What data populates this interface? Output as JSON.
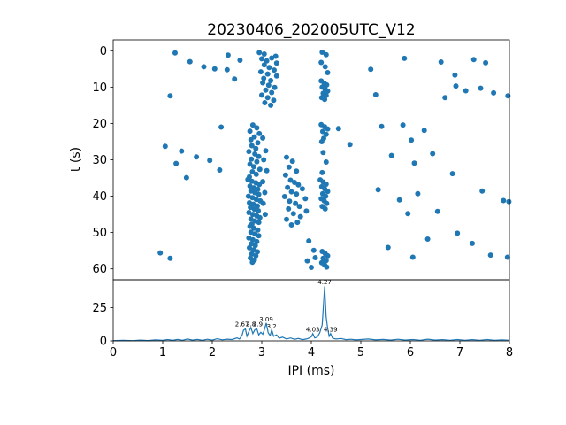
{
  "figure": {
    "title": "20230406_202005UTC_V12",
    "background": "#ffffff",
    "accent_color": "#1f77b4"
  },
  "chart_data": [
    {
      "type": "scatter",
      "title": "20230406_202005UTC_V12",
      "xlabel": "",
      "ylabel": "t (s)",
      "xlim": [
        0,
        8
      ],
      "ylim": [
        63,
        -3
      ],
      "yticks": [
        0,
        10,
        20,
        30,
        40,
        50,
        60
      ],
      "xticks": [
        0,
        1,
        2,
        3,
        4,
        5,
        6,
        7,
        8
      ],
      "show_xticklabels": false,
      "grid": false,
      "marker_color": "#1f77b4",
      "points": [
        [
          1.25,
          0.6
        ],
        [
          2.32,
          1.2
        ],
        [
          2.95,
          0.5
        ],
        [
          3.05,
          0.9
        ],
        [
          3.28,
          1.5
        ],
        [
          4.22,
          0.4
        ],
        [
          4.3,
          1.1
        ],
        [
          5.88,
          2.1
        ],
        [
          1.55,
          3.0
        ],
        [
          1.83,
          4.4
        ],
        [
          2.3,
          5.2
        ],
        [
          2.56,
          2.6
        ],
        [
          2.05,
          5.0
        ],
        [
          2.45,
          7.8
        ],
        [
          3.0,
          2.2
        ],
        [
          3.1,
          2.8
        ],
        [
          3.2,
          2.0
        ],
        [
          3.3,
          3.4
        ],
        [
          3.05,
          3.9
        ],
        [
          3.15,
          4.6
        ],
        [
          3.25,
          5.3
        ],
        [
          2.98,
          5.8
        ],
        [
          3.12,
          6.4
        ],
        [
          3.3,
          6.9
        ],
        [
          3.04,
          7.6
        ],
        [
          3.18,
          8.2
        ],
        [
          4.2,
          3.2
        ],
        [
          4.28,
          4.4
        ],
        [
          4.33,
          6.0
        ],
        [
          6.62,
          3.1
        ],
        [
          7.28,
          2.4
        ],
        [
          7.52,
          3.3
        ],
        [
          5.2,
          5.1
        ],
        [
          6.9,
          6.7
        ],
        [
          3.02,
          8.8
        ],
        [
          3.14,
          9.5
        ],
        [
          3.26,
          10.1
        ],
        [
          3.08,
          10.8
        ],
        [
          3.2,
          11.5
        ],
        [
          3.0,
          12.2
        ],
        [
          3.12,
          12.9
        ],
        [
          3.24,
          13.6
        ],
        [
          3.06,
          14.3
        ],
        [
          3.18,
          15.0
        ],
        [
          4.2,
          8.3
        ],
        [
          4.26,
          8.9
        ],
        [
          4.31,
          9.4
        ],
        [
          4.22,
          10.0
        ],
        [
          4.28,
          10.6
        ],
        [
          4.33,
          11.1
        ],
        [
          4.24,
          11.7
        ],
        [
          4.3,
          12.3
        ],
        [
          4.21,
          12.9
        ],
        [
          4.27,
          13.4
        ],
        [
          6.92,
          9.7
        ],
        [
          7.12,
          11.0
        ],
        [
          7.42,
          10.3
        ],
        [
          7.68,
          11.6
        ],
        [
          7.97,
          12.4
        ],
        [
          6.7,
          12.9
        ],
        [
          1.15,
          12.4
        ],
        [
          5.3,
          12.1
        ],
        [
          2.18,
          21.0
        ],
        [
          2.82,
          20.4
        ],
        [
          2.9,
          21.2
        ],
        [
          2.76,
          22.1
        ],
        [
          2.95,
          22.8
        ],
        [
          2.85,
          23.7
        ],
        [
          2.78,
          24.5
        ],
        [
          2.92,
          25.3
        ],
        [
          2.8,
          26.1
        ],
        [
          2.88,
          26.9
        ],
        [
          3.02,
          24.0
        ],
        [
          3.08,
          27.5
        ],
        [
          4.2,
          20.3
        ],
        [
          4.27,
          20.9
        ],
        [
          4.33,
          21.5
        ],
        [
          4.23,
          22.2
        ],
        [
          4.3,
          23.0
        ],
        [
          4.25,
          24.1
        ],
        [
          4.21,
          25.0
        ],
        [
          5.42,
          20.8
        ],
        [
          5.85,
          20.4
        ],
        [
          6.28,
          21.9
        ],
        [
          4.55,
          21.4
        ],
        [
          4.78,
          25.8
        ],
        [
          6.02,
          24.6
        ],
        [
          2.74,
          27.7
        ],
        [
          2.86,
          28.4
        ],
        [
          2.94,
          29.1
        ],
        [
          2.79,
          29.8
        ],
        [
          2.9,
          30.5
        ],
        [
          2.76,
          31.2
        ],
        [
          2.84,
          31.9
        ],
        [
          2.96,
          32.6
        ],
        [
          2.81,
          33.3
        ],
        [
          2.89,
          34.0
        ],
        [
          2.75,
          34.7
        ],
        [
          3.04,
          30.0
        ],
        [
          3.1,
          33.0
        ],
        [
          1.05,
          26.3
        ],
        [
          1.38,
          27.6
        ],
        [
          1.68,
          29.2
        ],
        [
          1.27,
          31.0
        ],
        [
          1.95,
          30.2
        ],
        [
          2.15,
          32.8
        ],
        [
          1.48,
          34.9
        ],
        [
          3.5,
          29.3
        ],
        [
          3.62,
          30.4
        ],
        [
          3.55,
          32.0
        ],
        [
          3.7,
          33.1
        ],
        [
          3.48,
          34.2
        ],
        [
          4.24,
          28.0
        ],
        [
          4.3,
          30.6
        ],
        [
          4.22,
          33.5
        ],
        [
          5.62,
          28.8
        ],
        [
          6.08,
          30.9
        ],
        [
          6.45,
          28.3
        ],
        [
          6.85,
          33.8
        ],
        [
          2.72,
          35.4
        ],
        [
          2.8,
          35.9
        ],
        [
          2.88,
          36.3
        ],
        [
          2.95,
          36.8
        ],
        [
          2.76,
          37.2
        ],
        [
          2.84,
          37.7
        ],
        [
          2.92,
          38.1
        ],
        [
          2.78,
          38.6
        ],
        [
          2.86,
          39.0
        ],
        [
          2.94,
          39.5
        ],
        [
          2.73,
          40.0
        ],
        [
          2.81,
          40.4
        ],
        [
          2.89,
          40.9
        ],
        [
          2.97,
          41.3
        ],
        [
          2.75,
          41.8
        ],
        [
          2.83,
          42.2
        ],
        [
          2.91,
          42.7
        ],
        [
          2.77,
          43.1
        ],
        [
          2.85,
          43.6
        ],
        [
          2.93,
          44.0
        ],
        [
          2.74,
          44.5
        ],
        [
          2.82,
          45.0
        ],
        [
          2.9,
          45.4
        ],
        [
          2.96,
          45.9
        ],
        [
          2.78,
          46.3
        ],
        [
          2.86,
          46.8
        ],
        [
          2.94,
          47.2
        ],
        [
          2.8,
          47.7
        ],
        [
          3.02,
          36.0
        ],
        [
          3.06,
          39.0
        ],
        [
          3.03,
          42.0
        ],
        [
          3.07,
          45.0
        ],
        [
          3.58,
          35.6
        ],
        [
          3.66,
          36.2
        ],
        [
          3.74,
          36.9
        ],
        [
          3.52,
          37.6
        ],
        [
          3.82,
          38.0
        ],
        [
          3.6,
          38.8
        ],
        [
          3.7,
          39.4
        ],
        [
          3.46,
          40.1
        ],
        [
          3.88,
          40.7
        ],
        [
          3.56,
          41.4
        ],
        [
          3.68,
          42.0
        ],
        [
          3.76,
          42.8
        ],
        [
          3.54,
          43.5
        ],
        [
          3.9,
          44.1
        ],
        [
          3.64,
          44.8
        ],
        [
          3.78,
          45.6
        ],
        [
          3.5,
          46.4
        ],
        [
          3.72,
          47.2
        ],
        [
          3.6,
          47.9
        ],
        [
          4.18,
          35.5
        ],
        [
          4.24,
          36.1
        ],
        [
          4.3,
          36.7
        ],
        [
          4.21,
          37.4
        ],
        [
          4.27,
          38.0
        ],
        [
          4.33,
          38.7
        ],
        [
          4.23,
          39.3
        ],
        [
          4.29,
          40.0
        ],
        [
          4.2,
          40.7
        ],
        [
          4.26,
          41.3
        ],
        [
          4.31,
          42.0
        ],
        [
          4.22,
          42.8
        ],
        [
          4.28,
          43.5
        ],
        [
          5.35,
          38.2
        ],
        [
          5.78,
          41.0
        ],
        [
          6.15,
          39.3
        ],
        [
          7.45,
          38.6
        ],
        [
          7.88,
          41.2
        ],
        [
          7.99,
          41.5
        ],
        [
          5.95,
          44.8
        ],
        [
          6.55,
          44.2
        ],
        [
          2.76,
          48.3
        ],
        [
          2.84,
          48.8
        ],
        [
          2.92,
          49.3
        ],
        [
          2.78,
          49.9
        ],
        [
          2.86,
          50.4
        ],
        [
          2.94,
          50.9
        ],
        [
          2.74,
          51.5
        ],
        [
          2.82,
          52.0
        ],
        [
          2.9,
          52.5
        ],
        [
          2.79,
          53.1
        ],
        [
          2.87,
          53.6
        ],
        [
          2.75,
          54.2
        ],
        [
          2.83,
          54.8
        ],
        [
          2.91,
          55.3
        ],
        [
          2.8,
          55.9
        ],
        [
          2.88,
          56.4
        ],
        [
          2.77,
          57.0
        ],
        [
          2.85,
          57.6
        ],
        [
          2.81,
          58.2
        ],
        [
          3.95,
          52.3
        ],
        [
          4.05,
          54.9
        ],
        [
          3.92,
          57.8
        ],
        [
          4.08,
          56.9
        ],
        [
          4.0,
          59.6
        ],
        [
          4.22,
          55.2
        ],
        [
          4.28,
          55.8
        ],
        [
          4.33,
          56.4
        ],
        [
          4.24,
          57.1
        ],
        [
          4.3,
          57.7
        ],
        [
          4.21,
          58.3
        ],
        [
          4.27,
          58.9
        ],
        [
          4.31,
          59.5
        ],
        [
          0.95,
          55.6
        ],
        [
          1.15,
          57.1
        ],
        [
          6.35,
          51.8
        ],
        [
          6.95,
          50.2
        ],
        [
          7.25,
          53.0
        ],
        [
          7.62,
          56.2
        ],
        [
          6.05,
          56.8
        ],
        [
          5.55,
          54.1
        ],
        [
          7.96,
          56.8
        ]
      ]
    },
    {
      "type": "line",
      "xlabel": "IPI (ms)",
      "ylabel": "",
      "xlim": [
        0,
        8
      ],
      "ylim": [
        0,
        46
      ],
      "yticks": [
        0,
        25
      ],
      "xticks": [
        0,
        1,
        2,
        3,
        4,
        5,
        6,
        7,
        8
      ],
      "show_xticklabels": true,
      "grid": false,
      "line_color": "#1f77b4",
      "points": [
        [
          0,
          0.2
        ],
        [
          0.2,
          0.4
        ],
        [
          0.4,
          0.2
        ],
        [
          0.55,
          0.6
        ],
        [
          0.7,
          0.3
        ],
        [
          0.85,
          0.7
        ],
        [
          1.0,
          0.4
        ],
        [
          1.1,
          1.0
        ],
        [
          1.2,
          0.4
        ],
        [
          1.3,
          1.1
        ],
        [
          1.4,
          0.5
        ],
        [
          1.5,
          1.4
        ],
        [
          1.6,
          0.6
        ],
        [
          1.7,
          1.1
        ],
        [
          1.8,
          0.5
        ],
        [
          1.9,
          1.2
        ],
        [
          2.0,
          0.6
        ],
        [
          2.1,
          1.6
        ],
        [
          2.2,
          0.8
        ],
        [
          2.3,
          1.3
        ],
        [
          2.4,
          1.0
        ],
        [
          2.5,
          2.2
        ],
        [
          2.55,
          1.4
        ],
        [
          2.6,
          4.0
        ],
        [
          2.63,
          8.0
        ],
        [
          2.67,
          9.0
        ],
        [
          2.7,
          3.5
        ],
        [
          2.74,
          7.0
        ],
        [
          2.78,
          10.0
        ],
        [
          2.82,
          5.5
        ],
        [
          2.86,
          8.5
        ],
        [
          2.9,
          9.0
        ],
        [
          2.94,
          4.5
        ],
        [
          2.98,
          6.5
        ],
        [
          3.02,
          5.0
        ],
        [
          3.05,
          8.0
        ],
        [
          3.09,
          13.5
        ],
        [
          3.13,
          6.0
        ],
        [
          3.17,
          4.0
        ],
        [
          3.2,
          8.5
        ],
        [
          3.24,
          3.5
        ],
        [
          3.3,
          4.5
        ],
        [
          3.35,
          2.0
        ],
        [
          3.42,
          2.8
        ],
        [
          3.5,
          1.4
        ],
        [
          3.58,
          2.2
        ],
        [
          3.66,
          1.2
        ],
        [
          3.74,
          1.8
        ],
        [
          3.82,
          0.9
        ],
        [
          3.9,
          1.4
        ],
        [
          3.96,
          2.2
        ],
        [
          4.0,
          3.0
        ],
        [
          4.03,
          5.5
        ],
        [
          4.07,
          2.2
        ],
        [
          4.12,
          2.8
        ],
        [
          4.17,
          6.0
        ],
        [
          4.22,
          12.0
        ],
        [
          4.27,
          41.0
        ],
        [
          4.3,
          18.0
        ],
        [
          4.33,
          9.5
        ],
        [
          4.36,
          3.5
        ],
        [
          4.39,
          5.5
        ],
        [
          4.43,
          2.0
        ],
        [
          4.5,
          1.4
        ],
        [
          4.6,
          1.8
        ],
        [
          4.7,
          0.9
        ],
        [
          4.8,
          1.2
        ],
        [
          4.9,
          0.7
        ],
        [
          5.0,
          1.0
        ],
        [
          5.15,
          1.4
        ],
        [
          5.3,
          0.7
        ],
        [
          5.45,
          1.1
        ],
        [
          5.6,
          0.6
        ],
        [
          5.75,
          1.2
        ],
        [
          5.9,
          0.6
        ],
        [
          6.05,
          1.0
        ],
        [
          6.2,
          0.5
        ],
        [
          6.35,
          1.3
        ],
        [
          6.5,
          0.6
        ],
        [
          6.65,
          0.9
        ],
        [
          6.8,
          0.5
        ],
        [
          6.95,
          1.0
        ],
        [
          7.1,
          0.5
        ],
        [
          7.25,
          0.9
        ],
        [
          7.4,
          0.5
        ],
        [
          7.55,
          1.0
        ],
        [
          7.7,
          0.4
        ],
        [
          7.85,
          0.8
        ],
        [
          8.0,
          0.5
        ]
      ],
      "annotations": [
        {
          "x": 2.6,
          "y": 11.0,
          "label": "2.67"
        },
        {
          "x": 2.78,
          "y": 11.0,
          "label": "2.8"
        },
        {
          "x": 2.92,
          "y": 11.0,
          "label": "2.9"
        },
        {
          "x": 3.09,
          "y": 14.8,
          "label": "3.09"
        },
        {
          "x": 3.2,
          "y": 9.5,
          "label": "3.2"
        },
        {
          "x": 4.03,
          "y": 7.0,
          "label": "4.03"
        },
        {
          "x": 4.27,
          "y": 42.8,
          "label": "4.27"
        },
        {
          "x": 4.39,
          "y": 7.0,
          "label": "4.39"
        }
      ]
    }
  ]
}
